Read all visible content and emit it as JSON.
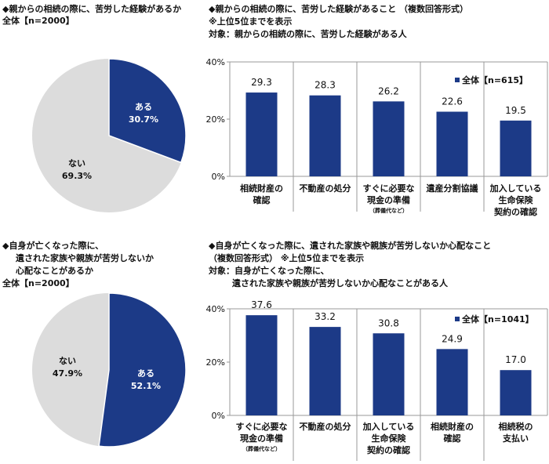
{
  "colors": {
    "bar": "#1c3a87",
    "pie_yes": "#1c3a87",
    "pie_no": "#dcdcdc",
    "grid": "#999999"
  },
  "section1": {
    "pie_title": "◆親からの相続の際に、苦労した経験があるか",
    "pie_base": "全体【n=2000】",
    "bar_title": "◆親からの相続の際に、苦労した経験があること （複数回答形式）",
    "bar_note": "※上位5位までを表示",
    "bar_target": "対象：親からの相続の際に、苦労した経験がある人"
  },
  "section2": {
    "pie_title_1": "◆自身が亡くなった際に、",
    "pie_title_2": "遺された家族や親族が苦労しないか",
    "pie_title_3": "心配なことがあるか",
    "pie_base": "全体【n=2000】",
    "bar_title": "◆自身が亡くなった際に、遺された家族や親族が苦労しないか心配なこと",
    "bar_note": "（複数回答形式） ※上位5位までを表示",
    "bar_target_1": "対象：自身が亡くなった際に、",
    "bar_target_2": "遺された家族や親族が苦労しないか心配なことがある人"
  },
  "chart_data": [
    {
      "type": "pie",
      "slices": [
        {
          "label": "ある",
          "value": 30.7,
          "display": "30.7%"
        },
        {
          "label": "ない",
          "value": 69.3,
          "display": "69.3%"
        }
      ]
    },
    {
      "type": "bar",
      "legend": "全体【n=615】",
      "legend_position": "top-right",
      "ylim": [
        0,
        40
      ],
      "yticks": [
        "0%",
        "20%",
        "40%"
      ],
      "categories": [
        [
          "相続財産の",
          "確認"
        ],
        [
          "不動産の処分"
        ],
        [
          "すぐに必要な",
          "現金の準備",
          "（葬儀代など）"
        ],
        [
          "遺産分割協議"
        ],
        [
          "加入している",
          "生命保険",
          "契約の確認"
        ]
      ],
      "values": [
        29.3,
        28.3,
        26.2,
        22.6,
        19.5
      ]
    },
    {
      "type": "pie",
      "slices": [
        {
          "label": "ある",
          "value": 52.1,
          "display": "52.1%"
        },
        {
          "label": "ない",
          "value": 47.9,
          "display": "47.9%"
        }
      ]
    },
    {
      "type": "bar",
      "legend": "全体【n=1041】",
      "legend_position": "top-right",
      "ylim": [
        0,
        40
      ],
      "yticks": [
        "0%",
        "20%",
        "40%"
      ],
      "categories": [
        [
          "すぐに必要な",
          "現金の準備",
          "（葬儀代など）"
        ],
        [
          "不動産の処分"
        ],
        [
          "加入している",
          "生命保険",
          "契約の確認"
        ],
        [
          "相続財産の",
          "確認"
        ],
        [
          "相続税の",
          "支払い"
        ]
      ],
      "values": [
        37.6,
        33.2,
        30.8,
        24.9,
        17.0
      ]
    }
  ]
}
